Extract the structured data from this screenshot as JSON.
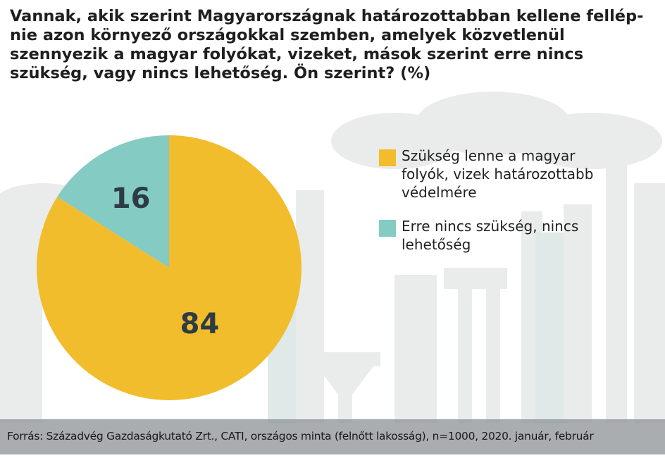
{
  "title": "Vannak, akik szerint Magyarországnak határozottabban kellene fellép-nie azon környező országokkal szemben, amelyek közvetlenül szennyezik a magyar folyókat, vizeket, mások szerint erre nincs szükség, vagy nincs lehetőség. Ön szerint? (%)",
  "chart_data": {
    "type": "pie",
    "title": "Vannak, akik szerint Magyarországnak határozottabban kellene fellép-nie azon környező országokkal szemben, amelyek közvetlenül szennyezik a magyar folyókat, vizeket, mások szerint erre nincs szükség, vagy nincs lehetőség. Ön szerint? (%)",
    "legend_position": "right",
    "slices": [
      {
        "label": "Szükség lenne a magyar folyók, vizek határozottabb védelmére",
        "value": 84,
        "data_label": "84",
        "color": "#f2bd2c"
      },
      {
        "label": "Erre nincs szükség, nincs lehetőség",
        "value": 16,
        "data_label": "16",
        "color": "#84cbc3"
      }
    ]
  },
  "footer": {
    "source": "Forrás: Századvég Gazdaságkutató Zrt., CATI, országos minta (felnőtt lakosság), n=1000, 2020. január, február"
  }
}
